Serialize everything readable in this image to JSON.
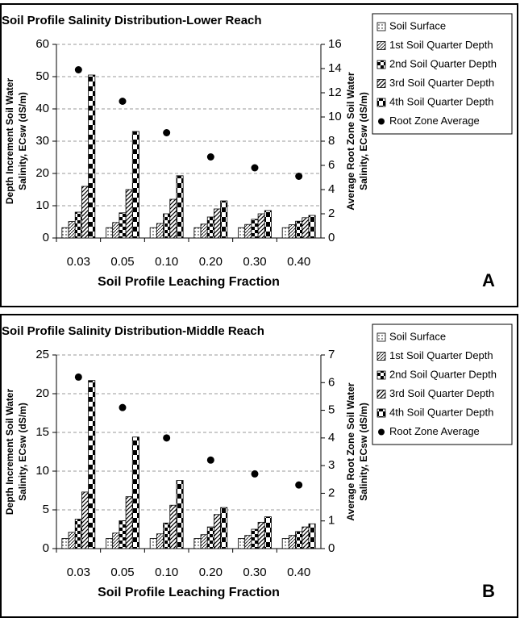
{
  "chart_data": [
    {
      "type": "bar",
      "title": "Soil Profile Salinity Distribution-Lower Reach",
      "panel_label": "A",
      "xlabel": "Soil Profile Leaching Fraction",
      "ylabel": [
        "Depth Increment Soil Water",
        "Salinity, ECsw (dS/m)"
      ],
      "y2label": [
        "Average Root Zone Soil Water",
        "Salinity, ECsw (dS/m)"
      ],
      "categories": [
        "0.03",
        "0.05",
        "0.10",
        "0.20",
        "0.30",
        "0.40"
      ],
      "ylim": [
        0,
        60
      ],
      "yticks": [
        0,
        10,
        20,
        30,
        40,
        50,
        60
      ],
      "y2lim": [
        0,
        16
      ],
      "y2ticks": [
        0,
        2,
        4,
        6,
        8,
        10,
        12,
        14,
        16
      ],
      "grid": true,
      "legend": "right",
      "series": [
        {
          "name": "Soil Surface",
          "pattern": "dots",
          "values": [
            3.2,
            3.2,
            3.2,
            3.2,
            3.2,
            3.2
          ]
        },
        {
          "name": "1st Soil Quarter Depth",
          "pattern": "fine-hatch",
          "values": [
            5.1,
            4.8,
            4.5,
            4.3,
            4.2,
            4.1
          ]
        },
        {
          "name": "2nd Soil Quarter Depth",
          "pattern": "checker",
          "values": [
            8,
            7.8,
            7.5,
            6.5,
            5.8,
            5.2
          ]
        },
        {
          "name": "3rd Soil Quarter Depth",
          "pattern": "hatch",
          "values": [
            16,
            15,
            12,
            9,
            7.5,
            6.3
          ]
        },
        {
          "name": "4th Soil Quarter Depth",
          "pattern": "checker-large",
          "values": [
            50.5,
            33,
            19.3,
            11.5,
            8.5,
            7
          ]
        },
        {
          "name": "Root Zone Average",
          "type": "scatter",
          "axis": "y2",
          "color": "#000000",
          "values": [
            13.9,
            11.3,
            8.7,
            6.7,
            5.8,
            5.1
          ]
        }
      ]
    },
    {
      "type": "bar",
      "title": "Soil Profile Salinity Distribution-Middle Reach",
      "panel_label": "B",
      "xlabel": "Soil Profile Leaching Fraction",
      "ylabel": [
        "Depth Increment Soil Water",
        "Salinity, ECsw (dS/m)"
      ],
      "y2label": [
        "Average Root Zone Soil Water",
        "Salinity, ECsw (dS/m)"
      ],
      "categories": [
        "0.03",
        "0.05",
        "0.10",
        "0.20",
        "0.30",
        "0.40"
      ],
      "ylim": [
        0,
        25
      ],
      "yticks": [
        0,
        5,
        10,
        15,
        20,
        25
      ],
      "y2lim": [
        0,
        7
      ],
      "y2ticks": [
        0,
        1,
        2,
        3,
        4,
        5,
        6,
        7
      ],
      "grid": true,
      "legend": "right",
      "series": [
        {
          "name": "Soil Surface",
          "pattern": "dots",
          "values": [
            1.3,
            1.3,
            1.3,
            1.3,
            1.3,
            1.3
          ]
        },
        {
          "name": "1st Soil Quarter Depth",
          "pattern": "fine-hatch",
          "values": [
            2.1,
            2.0,
            1.9,
            1.8,
            1.7,
            1.7
          ]
        },
        {
          "name": "2nd Soil Quarter Depth",
          "pattern": "checker",
          "values": [
            3.8,
            3.6,
            3.3,
            2.8,
            2.5,
            2.2
          ]
        },
        {
          "name": "3rd Soil Quarter Depth",
          "pattern": "hatch",
          "values": [
            7.3,
            6.7,
            5.6,
            4.4,
            3.4,
            2.8
          ]
        },
        {
          "name": "4th Soil Quarter Depth",
          "pattern": "checker-large",
          "values": [
            21.7,
            14.4,
            8.8,
            5.3,
            4.1,
            3.2
          ]
        },
        {
          "name": "Root Zone Average",
          "type": "scatter",
          "axis": "y2",
          "color": "#000000",
          "values": [
            6.2,
            5.1,
            4.0,
            3.2,
            2.7,
            2.3
          ]
        }
      ]
    }
  ]
}
